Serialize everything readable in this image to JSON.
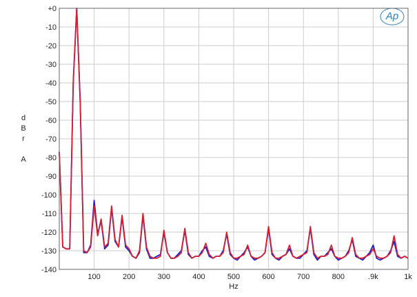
{
  "chart_data": {
    "type": "line",
    "logo": "Ap",
    "xlabel": "Hz",
    "ylabel": "dBr A",
    "x": [
      0,
      10,
      20,
      30,
      40,
      50,
      60,
      70,
      80,
      90,
      100,
      110,
      120,
      130,
      140,
      150,
      160,
      170,
      180,
      190,
      200,
      210,
      220,
      230,
      240,
      250,
      260,
      270,
      280,
      290,
      300,
      310,
      320,
      330,
      340,
      350,
      360,
      370,
      380,
      390,
      400,
      410,
      420,
      430,
      440,
      450,
      460,
      470,
      480,
      490,
      500,
      510,
      520,
      530,
      540,
      550,
      560,
      570,
      580,
      590,
      600,
      610,
      620,
      630,
      640,
      650,
      660,
      670,
      680,
      690,
      700,
      710,
      720,
      730,
      740,
      750,
      760,
      770,
      780,
      790,
      800,
      810,
      820,
      830,
      840,
      850,
      860,
      870,
      880,
      890,
      900,
      910,
      920,
      930,
      940,
      950,
      960,
      970,
      980,
      990,
      1000
    ],
    "series": [
      {
        "color": "#1a1ad0",
        "values": [
          -77,
          -128,
          -129,
          -129,
          -40,
          0,
          -50,
          -131,
          -131,
          -127,
          -103,
          -121,
          -114,
          -129,
          -127,
          -107,
          -125,
          -128,
          -112,
          -128,
          -130,
          -133,
          -134,
          -131,
          -111,
          -129,
          -134,
          -134,
          -133,
          -132,
          -120,
          -131,
          -134,
          -134,
          -132,
          -130,
          -119,
          -132,
          -134,
          -133,
          -133,
          -130,
          -128,
          -133,
          -134,
          -133,
          -133,
          -130,
          -121,
          -132,
          -134,
          -135,
          -133,
          -131,
          -128,
          -133,
          -135,
          -134,
          -133,
          -131,
          -118,
          -132,
          -134,
          -135,
          -133,
          -132,
          -129,
          -133,
          -134,
          -134,
          -132,
          -130,
          -118,
          -132,
          -135,
          -133,
          -133,
          -131,
          -129,
          -133,
          -135,
          -134,
          -133,
          -130,
          -124,
          -133,
          -134,
          -135,
          -133,
          -131,
          -127,
          -134,
          -135,
          -134,
          -133,
          -130,
          -125,
          -133,
          -134,
          -133,
          -134
        ]
      },
      {
        "color": "#d42030",
        "values": [
          -77,
          -128,
          -129,
          -129,
          -40,
          0,
          -50,
          -130,
          -131,
          -128,
          -106,
          -122,
          -113,
          -128,
          -126,
          -106,
          -124,
          -128,
          -111,
          -127,
          -129,
          -133,
          -134,
          -130,
          -110,
          -128,
          -133,
          -134,
          -134,
          -133,
          -119,
          -131,
          -134,
          -134,
          -133,
          -131,
          -118,
          -131,
          -134,
          -133,
          -133,
          -131,
          -126,
          -132,
          -134,
          -133,
          -133,
          -131,
          -120,
          -131,
          -134,
          -134,
          -133,
          -132,
          -127,
          -133,
          -134,
          -134,
          -133,
          -131,
          -117,
          -131,
          -134,
          -134,
          -133,
          -132,
          -127,
          -133,
          -134,
          -133,
          -132,
          -131,
          -117,
          -131,
          -134,
          -133,
          -133,
          -132,
          -127,
          -133,
          -134,
          -134,
          -133,
          -131,
          -123,
          -132,
          -134,
          -134,
          -133,
          -132,
          -129,
          -133,
          -134,
          -134,
          -133,
          -131,
          -122,
          -132,
          -134,
          -133,
          -134
        ]
      }
    ],
    "xlim": [
      0,
      1000
    ],
    "xticks": [
      100,
      200,
      300,
      400,
      500,
      600,
      700,
      800,
      {
        "value": 900,
        "label": ".9k"
      },
      {
        "value": 1000,
        "label": "1k"
      }
    ],
    "ylim": [
      -140,
      0
    ],
    "yticks": [
      {
        "value": 0,
        "label": "+0"
      },
      -10,
      -20,
      -30,
      -40,
      -50,
      -60,
      -70,
      -80,
      -90,
      -100,
      -110,
      -120,
      -130,
      -140
    ],
    "grid": true
  }
}
